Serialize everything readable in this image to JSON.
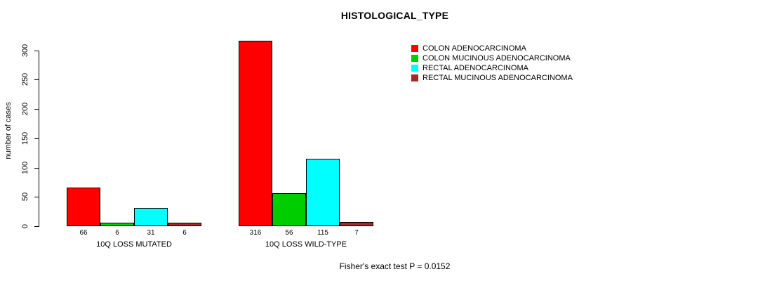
{
  "chart_data": {
    "type": "bar",
    "title": "HISTOLOGICAL_TYPE",
    "ylabel": "number of cases",
    "xlabel": "",
    "categories": [
      "10Q LOSS MUTATED",
      "10Q LOSS WILD-TYPE"
    ],
    "series": [
      {
        "name": "COLON ADENOCARCINOMA",
        "color": "#ff0000",
        "values": [
          66,
          316
        ]
      },
      {
        "name": "COLON MUCINOUS ADENOCARCINOMA",
        "color": "#00cd00",
        "values": [
          6,
          56
        ]
      },
      {
        "name": "RECTAL ADENOCARCINOMA",
        "color": "#00ffff",
        "values": [
          31,
          115
        ]
      },
      {
        "name": "RECTAL MUCINOUS ADENOCARCINOMA",
        "color": "#a52a2a",
        "values": [
          6,
          7
        ]
      }
    ],
    "bar_value_labels": [
      [
        66,
        6,
        31,
        6
      ],
      [
        316,
        56,
        115,
        7
      ]
    ],
    "yticks": [
      0,
      50,
      100,
      150,
      200,
      250,
      300
    ],
    "ylim": [
      0,
      320
    ],
    "grid": false,
    "legend_position": "top-right",
    "footnote": "Fisher's exact test P = 0.0152",
    "colors": {
      "background": "#ffffff",
      "axis": "#000000",
      "text": "#000000"
    }
  }
}
